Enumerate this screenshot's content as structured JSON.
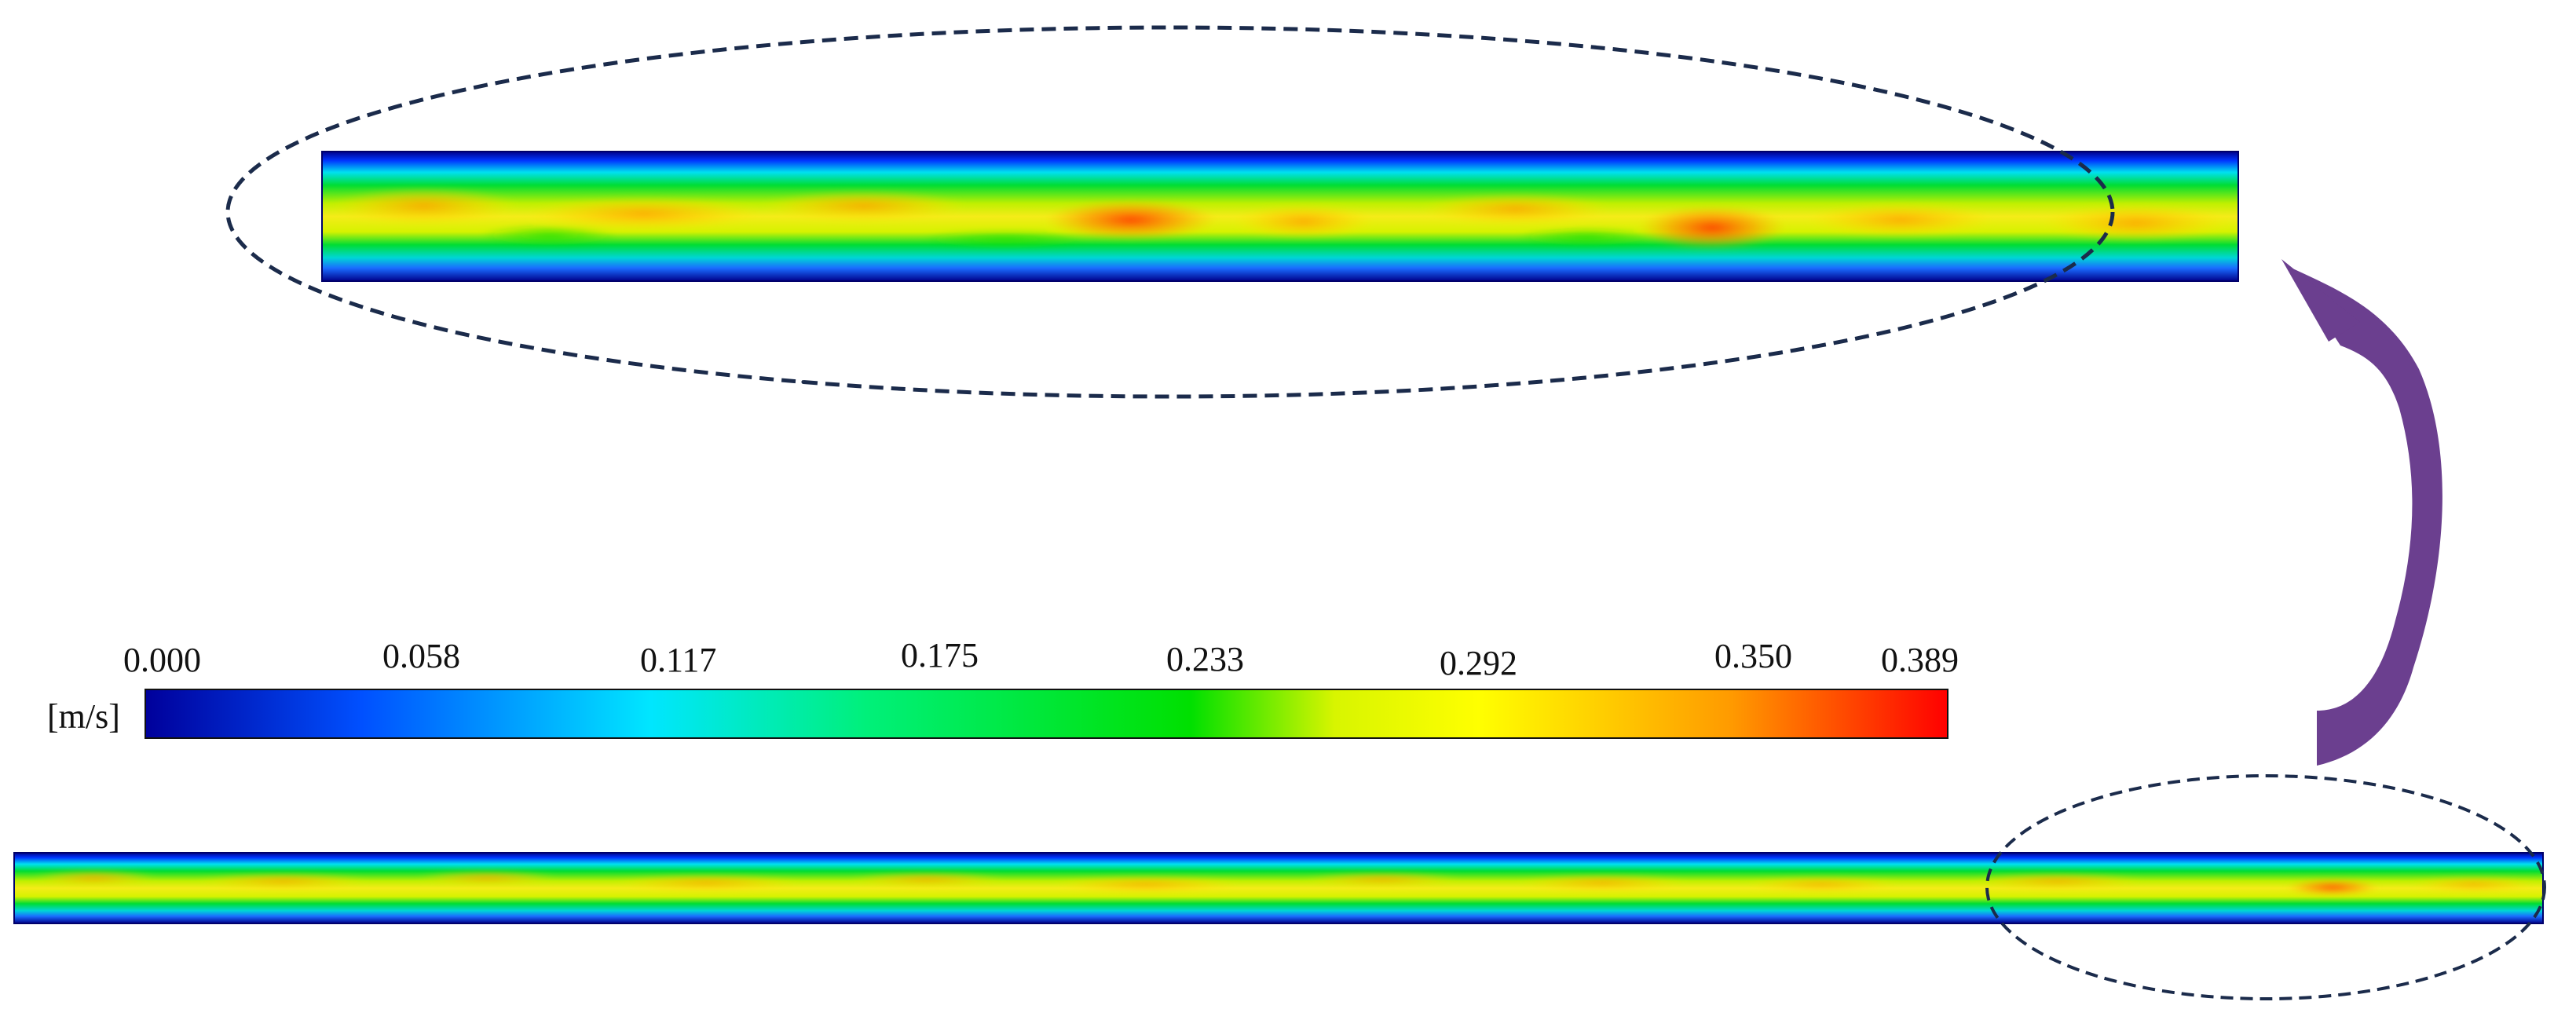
{
  "legend": {
    "unit": "[m/s]",
    "ticks": [
      "0.000",
      "0.058",
      "0.117",
      "0.175",
      "0.233",
      "0.292",
      "0.350",
      "0.389"
    ],
    "colormap": [
      "#00009b",
      "#0050ff",
      "#00e6ff",
      "#00f07a",
      "#00e000",
      "#ffff00",
      "#ff9a00",
      "#ff0000"
    ]
  },
  "colors": {
    "ellipse_stroke": "#1b2b4b",
    "arrow_fill": "#6b3f8f",
    "channel_wall": "#00008a",
    "channel_edge": "#0036ff",
    "channel_mid": "#00dd33",
    "channel_core": "#f4ec18",
    "hotspot": "#ff3a00"
  }
}
